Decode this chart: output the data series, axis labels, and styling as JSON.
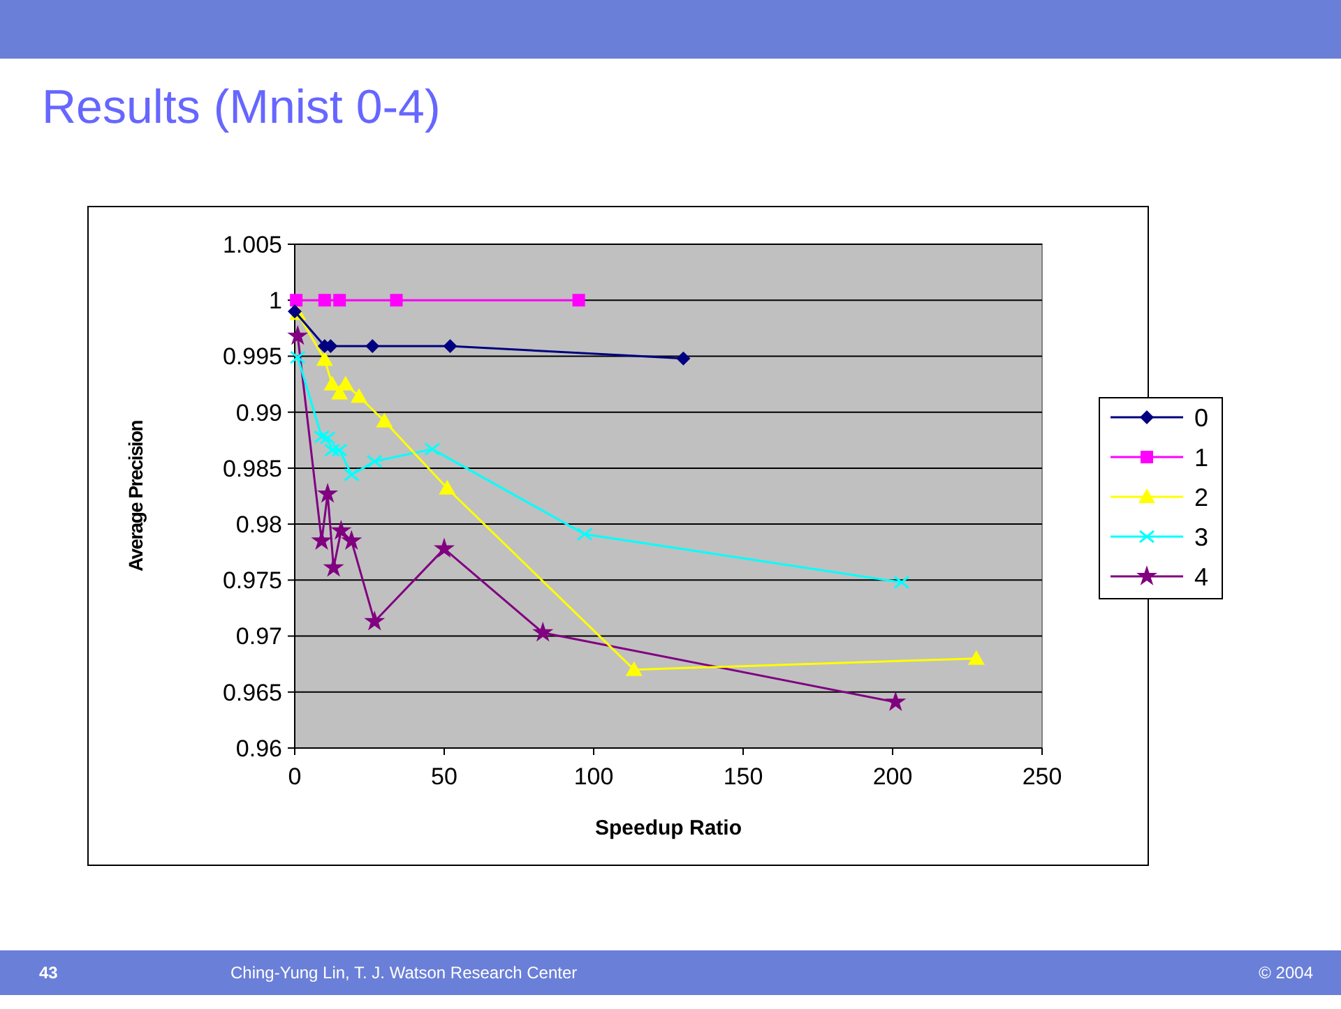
{
  "chart_data": {
    "type": "line",
    "title": "Results (Mnist 0-4)",
    "xlabel": "Speedup Ratio",
    "ylabel": "Average Precision",
    "xlim": [
      0,
      250
    ],
    "xticks": [
      0,
      50,
      100,
      150,
      200,
      250
    ],
    "ylim": [
      0.96,
      1.005
    ],
    "yticks": [
      0.96,
      0.965,
      0.97,
      0.975,
      0.98,
      0.985,
      0.99,
      0.995,
      1,
      1.005
    ],
    "grid": "y",
    "legend": "right",
    "annotations": [
      "43",
      "Ching-Yung Lin, T. J. Watson Research Center",
      "© 2004"
    ],
    "series": [
      {
        "name": "0",
        "color": "#000080",
        "marker": "diamond",
        "x": [
          0,
          10,
          12,
          26,
          52,
          130
        ],
        "values": [
          0.999,
          0.9959,
          0.9959,
          0.9959,
          0.9959,
          0.9948
        ]
      },
      {
        "name": "1",
        "color": "#ff00ff",
        "marker": "square",
        "x": [
          0.5,
          10,
          15,
          34,
          95
        ],
        "values": [
          1,
          1,
          1,
          1,
          1
        ]
      },
      {
        "name": "2",
        "color": "#ffff00",
        "marker": "triangle",
        "x": [
          1,
          10,
          12.5,
          15,
          17,
          21.5,
          30,
          51,
          113.5,
          228
        ],
        "values": [
          0.9988,
          0.9947,
          0.9925,
          0.9917,
          0.9925,
          0.9914,
          0.9892,
          0.9832,
          0.967,
          0.968
        ]
      },
      {
        "name": "3",
        "color": "#00ffff",
        "marker": "cross",
        "x": [
          1,
          9,
          11,
          12.5,
          15,
          19,
          26.7,
          46,
          97,
          203
        ],
        "values": [
          0.9949,
          0.9878,
          0.9877,
          0.9866,
          0.9866,
          0.9844,
          0.9856,
          0.9867,
          0.9791,
          0.9748
        ]
      },
      {
        "name": "4",
        "color": "#800080",
        "marker": "star",
        "x": [
          1,
          9,
          11,
          13,
          15.5,
          19,
          26.7,
          50,
          83,
          201
        ],
        "values": [
          0.9968,
          0.9785,
          0.9827,
          0.9761,
          0.9794,
          0.9785,
          0.9713,
          0.9778,
          0.9703,
          0.9641
        ]
      }
    ]
  }
}
